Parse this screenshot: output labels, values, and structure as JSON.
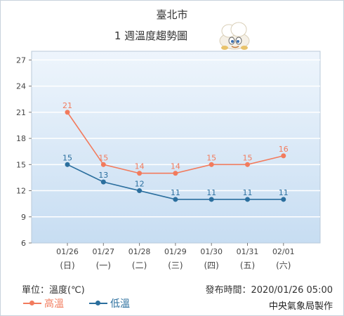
{
  "title": "臺北市",
  "subtitle": "1 週溫度趨勢圖",
  "unit_label": "單位：溫度(℃)",
  "issued_label": "發布時間：2020/01/26 05:00",
  "agency": "中央氣象局製作",
  "colors": {
    "high": "#f27b5d",
    "low": "#2b6f9e",
    "plot_bg_top": "#eef5fc",
    "plot_bg_bottom": "#c7ddf2",
    "grid": "#ffffff",
    "axis_text": "#444444"
  },
  "mascot_icon": "cloud-mascot-icon",
  "chart_data": {
    "type": "line",
    "title": "1 週溫度趨勢圖",
    "x": [
      "01/26",
      "01/27",
      "01/28",
      "01/29",
      "01/30",
      "01/31",
      "02/01"
    ],
    "x_sub": [
      "(日)",
      "(一)",
      "(二)",
      "(三)",
      "(四)",
      "(五)",
      "(六)"
    ],
    "ylabel": "",
    "ylim": [
      6,
      28
    ],
    "yticks": [
      6,
      9,
      12,
      15,
      18,
      21,
      24,
      27
    ],
    "grid": true,
    "legend": "bottom-left",
    "series": [
      {
        "name": "高溫",
        "values": [
          21,
          15,
          14,
          14,
          15,
          15,
          16
        ],
        "color": "#f27b5d"
      },
      {
        "name": "低溫",
        "values": [
          15,
          13,
          12,
          11,
          11,
          11,
          11
        ],
        "color": "#2b6f9e"
      }
    ]
  }
}
